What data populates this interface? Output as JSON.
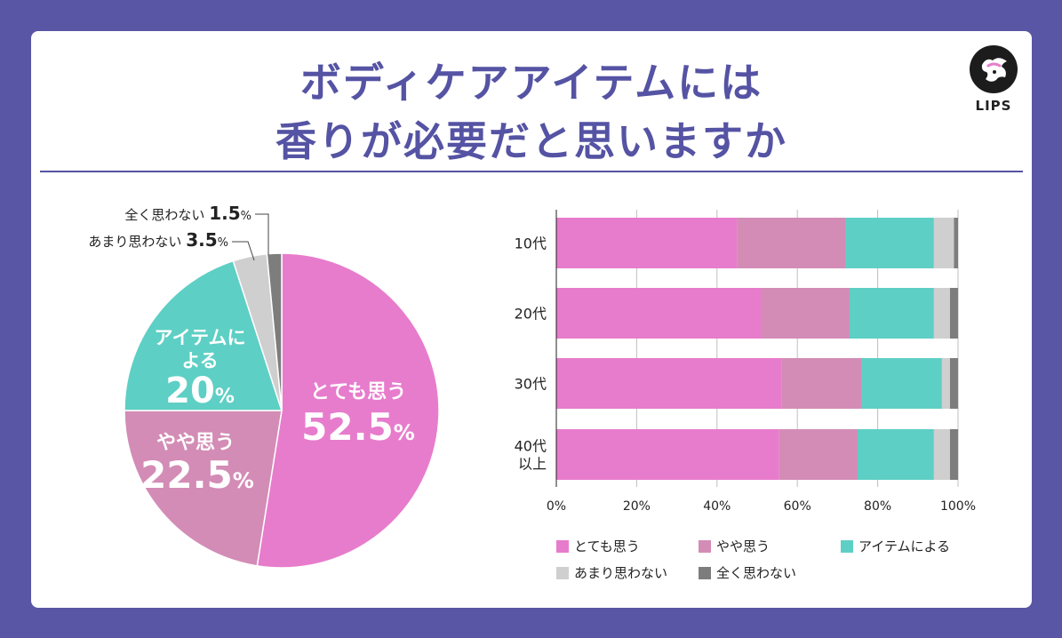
{
  "title": {
    "line1": "ボディケアアイテムには",
    "line2": "香りが必要だと思いますか"
  },
  "logo": {
    "text": "LIPS",
    "icon": "deer-icon"
  },
  "colors": {
    "background": "#5856a5",
    "title": "#5553a3",
    "series": [
      "#e77ccc",
      "#d38cb5",
      "#5ecfc4",
      "#cfcfcf",
      "#7d7d7d"
    ]
  },
  "chart_data": [
    {
      "type": "pie",
      "categories": [
        "とても思う",
        "やや思う",
        "アイテムによる",
        "あまり思わない",
        "全く思わない"
      ],
      "values": [
        52.5,
        22.5,
        20,
        3.5,
        1.5
      ],
      "labels": [
        {
          "name": "とても思う",
          "value": "52.5",
          "unit": "%"
        },
        {
          "name": "やや思う",
          "value": "22.5",
          "unit": "%"
        },
        {
          "name_line1": "アイテムに",
          "name_line2": "よる",
          "value": "20",
          "unit": "%"
        },
        {
          "name": "あまり思わない",
          "value": "3.5",
          "unit": "%"
        },
        {
          "name": "全く思わない",
          "value": "1.5",
          "unit": "%"
        }
      ]
    },
    {
      "type": "bar",
      "orientation": "horizontal",
      "stacked": true,
      "categories": [
        "10代",
        "20代",
        "30代",
        "40代\n以上"
      ],
      "series": [
        {
          "name": "とても思う",
          "values": [
            45,
            51,
            56,
            55.5
          ]
        },
        {
          "name": "やや思う",
          "values": [
            27,
            22,
            20,
            19.5
          ]
        },
        {
          "name": "アイテムによる",
          "values": [
            22,
            21,
            20,
            19
          ]
        },
        {
          "name": "あまり思わない",
          "values": [
            5,
            4,
            2,
            4
          ]
        },
        {
          "name": "全く思わない",
          "values": [
            1,
            2,
            2,
            2
          ]
        }
      ],
      "xticks": [
        "0%",
        "20%",
        "40%",
        "60%",
        "80%",
        "100%"
      ],
      "xlim": [
        0,
        100
      ],
      "grid": true,
      "legend": {
        "position": "bottom",
        "items": [
          "とても思う",
          "やや思う",
          "アイテムによる",
          "あまり思わない",
          "全く思わない"
        ]
      }
    }
  ]
}
